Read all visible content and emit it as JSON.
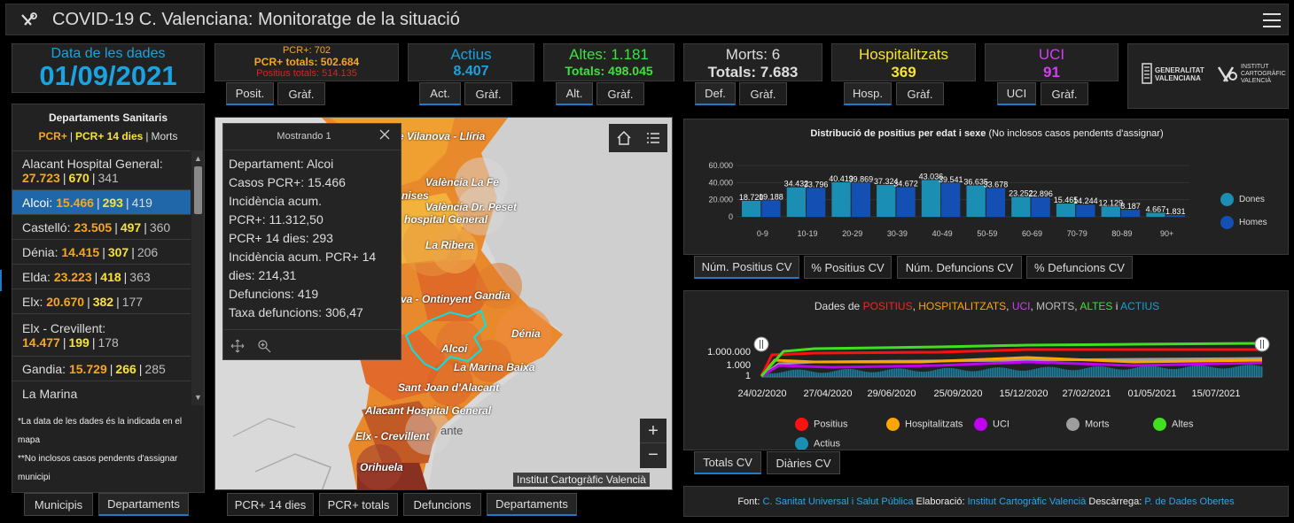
{
  "header": {
    "title": "COVID-19 C. Valenciana: Monitoratge de la situació",
    "logo_icon": "virus-logo-icon",
    "menu_icon": "hamburger-icon"
  },
  "date_box": {
    "label": "Data de les dades",
    "value": "01/09/2021"
  },
  "kpis": {
    "positius": {
      "line1": "PCR+: 702",
      "line2": "PCR+ totals: 502.684",
      "line3": "Positius totals: 514.135",
      "tab1": "Posit.",
      "tab2": "Gràf."
    },
    "actius": {
      "label": "Actius",
      "value": "8.407",
      "tab1": "Act.",
      "tab2": "Gràf."
    },
    "altes": {
      "label": "Altes: 1.181",
      "value": "Totals: 498.045",
      "tab1": "Alt.",
      "tab2": "Gràf."
    },
    "morts": {
      "label": "Morts: 6",
      "value": "Totals: 7.683",
      "tab1": "Def.",
      "tab2": "Gràf."
    },
    "hosp": {
      "label": "Hospitalitzats",
      "value": "369",
      "tab1": "Hosp.",
      "tab2": "Gràf."
    },
    "uci": {
      "label": "UCI",
      "value": "91",
      "tab1": "UCI",
      "tab2": "Gràf."
    }
  },
  "logos": {
    "gva_line1": "GENERALITAT",
    "gva_line2": "VALENCIANA",
    "icv_line1": "INSTITUT",
    "icv_line2": "CARTOGRÀFIC",
    "icv_line3": "VALENCIÀ"
  },
  "sidebar": {
    "title": "Departaments Sanitaris",
    "legend_a": "PCR+",
    "legend_b": "PCR+ 14 dies",
    "legend_c": "Morts",
    "items": [
      {
        "name": "Alacant Hospital General:",
        "a": "27.723",
        "b": "670",
        "c": "341"
      },
      {
        "name": "Alcoi:",
        "a": "15.466",
        "b": "293",
        "c": "419"
      },
      {
        "name": "Castelló:",
        "a": "23.505",
        "b": "497",
        "c": "360"
      },
      {
        "name": "Dénia:",
        "a": "14.415",
        "b": "307",
        "c": "206"
      },
      {
        "name": "Elda:",
        "a": "23.223",
        "b": "418",
        "c": "363"
      },
      {
        "name": "Elx:",
        "a": "20.670",
        "b": "382",
        "c": "177"
      },
      {
        "name": "Elx - Crevillent:",
        "a": "14.477",
        "b": "199",
        "c": "178"
      },
      {
        "name": "Gandia:",
        "a": "15.729",
        "b": "266",
        "c": "285"
      },
      {
        "name": "La Marina",
        "a": "",
        "b": "",
        "c": ""
      }
    ],
    "note1": "*La data de les dades és la indicada en el mapa",
    "note2": "**No inclosos casos pendents d'assignar municipi",
    "tab1": "Municipis",
    "tab2": "Departaments"
  },
  "map": {
    "popup": {
      "header": "Mostrando 1",
      "lines": [
        "Departament: Alcoi",
        "Casos PCR+: 15.466",
        "Incidència acum.",
        "PCR+: 11.312,50",
        "PCR+ 14 dies: 293",
        "Incidència acum. PCR+ 14",
        "dies: 214,31",
        "Defuncions: 419",
        "Taxa defuncions: 306,47"
      ]
    },
    "labels": [
      "e Vilanova - Llíria",
      "València La Fe",
      "nises",
      "València Dr. Peset",
      "hospital General",
      "La Ribera",
      "va - Ontinyent",
      "Gandia",
      "Dénia",
      "Alcoi",
      "La Marina Baixa",
      "Sant Joan d'Alacant",
      "Alacant Hospital General",
      "Elx - Crevillent",
      "Orihuela",
      "ante"
    ],
    "attribution": "Institut Cartogràfic Valencià",
    "tabs": [
      "PCR+ 14 dies",
      "PCR+ totals",
      "Defuncions",
      "Departaments"
    ]
  },
  "bar_chart": {
    "tabs": [
      "Núm. Positius CV",
      "% Positius CV",
      "Núm. Defuncions CV",
      "% Defuncions CV"
    ],
    "chart_data": {
      "type": "bar",
      "title": "Distribució de positius per edat i sexe",
      "subtitle": "(No inclosos casos pendents d'assignar)",
      "categories": [
        "0-9",
        "10-19",
        "20-29",
        "30-39",
        "40-49",
        "50-59",
        "60-69",
        "70-79",
        "80-89",
        "90+"
      ],
      "series": [
        {
          "name": "Dones",
          "color": "#1a8fb3",
          "values": [
            18720,
            34432,
            40419,
            37324,
            43036,
            36635,
            23252,
            15465,
            12129,
            4667
          ]
        },
        {
          "name": "Homes",
          "color": "#1450b4",
          "values": [
            19188,
            33796,
            39869,
            34672,
            39541,
            33678,
            22896,
            14244,
            8187,
            1831
          ]
        }
      ],
      "value_labels": {
        "Dones": [
          "18.720",
          "34.432",
          "40.419",
          "37.324",
          "43.036",
          "36.635",
          "23.252",
          "15.465",
          "12.129",
          "4.667"
        ],
        "Homes": [
          "19.188",
          "33.796",
          "39.869",
          "34.672",
          "39.541",
          "33.678",
          "22.896",
          "14.244",
          "8.187",
          "1.831"
        ]
      },
      "yticks": [
        "60.000",
        "40.000",
        "20.000",
        "0"
      ],
      "ylim": [
        0,
        60000
      ],
      "legend": "right"
    }
  },
  "line_chart": {
    "tabs": [
      "Totals CV",
      "Diàries CV"
    ],
    "chart_data": {
      "type": "line",
      "title_prefix": "Dades de",
      "title_parts": [
        {
          "t": "POSITIUS",
          "c": "#ff2020"
        },
        {
          "t": ", ",
          "c": "#dddddd"
        },
        {
          "t": "HOSPITALITZATS",
          "c": "#ffa500"
        },
        {
          "t": ", ",
          "c": "#dddddd"
        },
        {
          "t": "UCI",
          "c": "#d040f0"
        },
        {
          "t": ", ",
          "c": "#dddddd"
        },
        {
          "t": "MORTS",
          "c": "#bdbdbd"
        },
        {
          "t": ", ",
          "c": "#dddddd"
        },
        {
          "t": "ALTES",
          "c": "#40e040"
        },
        {
          "t": " i ",
          "c": "#dddddd"
        },
        {
          "t": "ACTIUS",
          "c": "#1a9fd0"
        }
      ],
      "yticks": [
        "1.000.000",
        "1.000",
        "1"
      ],
      "xticks": [
        "24/02/2020",
        "27/04/2020",
        "29/06/2020",
        "25/09/2020",
        "15/12/2020",
        "27/02/2021",
        "01/05/2021",
        "15/07/2021"
      ],
      "scale": "log",
      "series": [
        {
          "name": "Positius",
          "color": "#ff1010"
        },
        {
          "name": "Hospitalitzats",
          "color": "#ffa500"
        },
        {
          "name": "UCI",
          "color": "#c000f0"
        },
        {
          "name": "Morts",
          "color": "#9e9e9e"
        },
        {
          "name": "Altes",
          "color": "#40e020"
        },
        {
          "name": "Actius",
          "color": "#1a8fb3"
        }
      ]
    }
  },
  "footer": {
    "font_label": "Font:",
    "font_link": "C. Sanitat Universal i Salut Pública",
    "elab_label": "Elaboració:",
    "elab_link": "Institut Cartogràfic Valencià",
    "desc_label": "Descàrrega:",
    "desc_link": "P. de Dades Obertes"
  }
}
